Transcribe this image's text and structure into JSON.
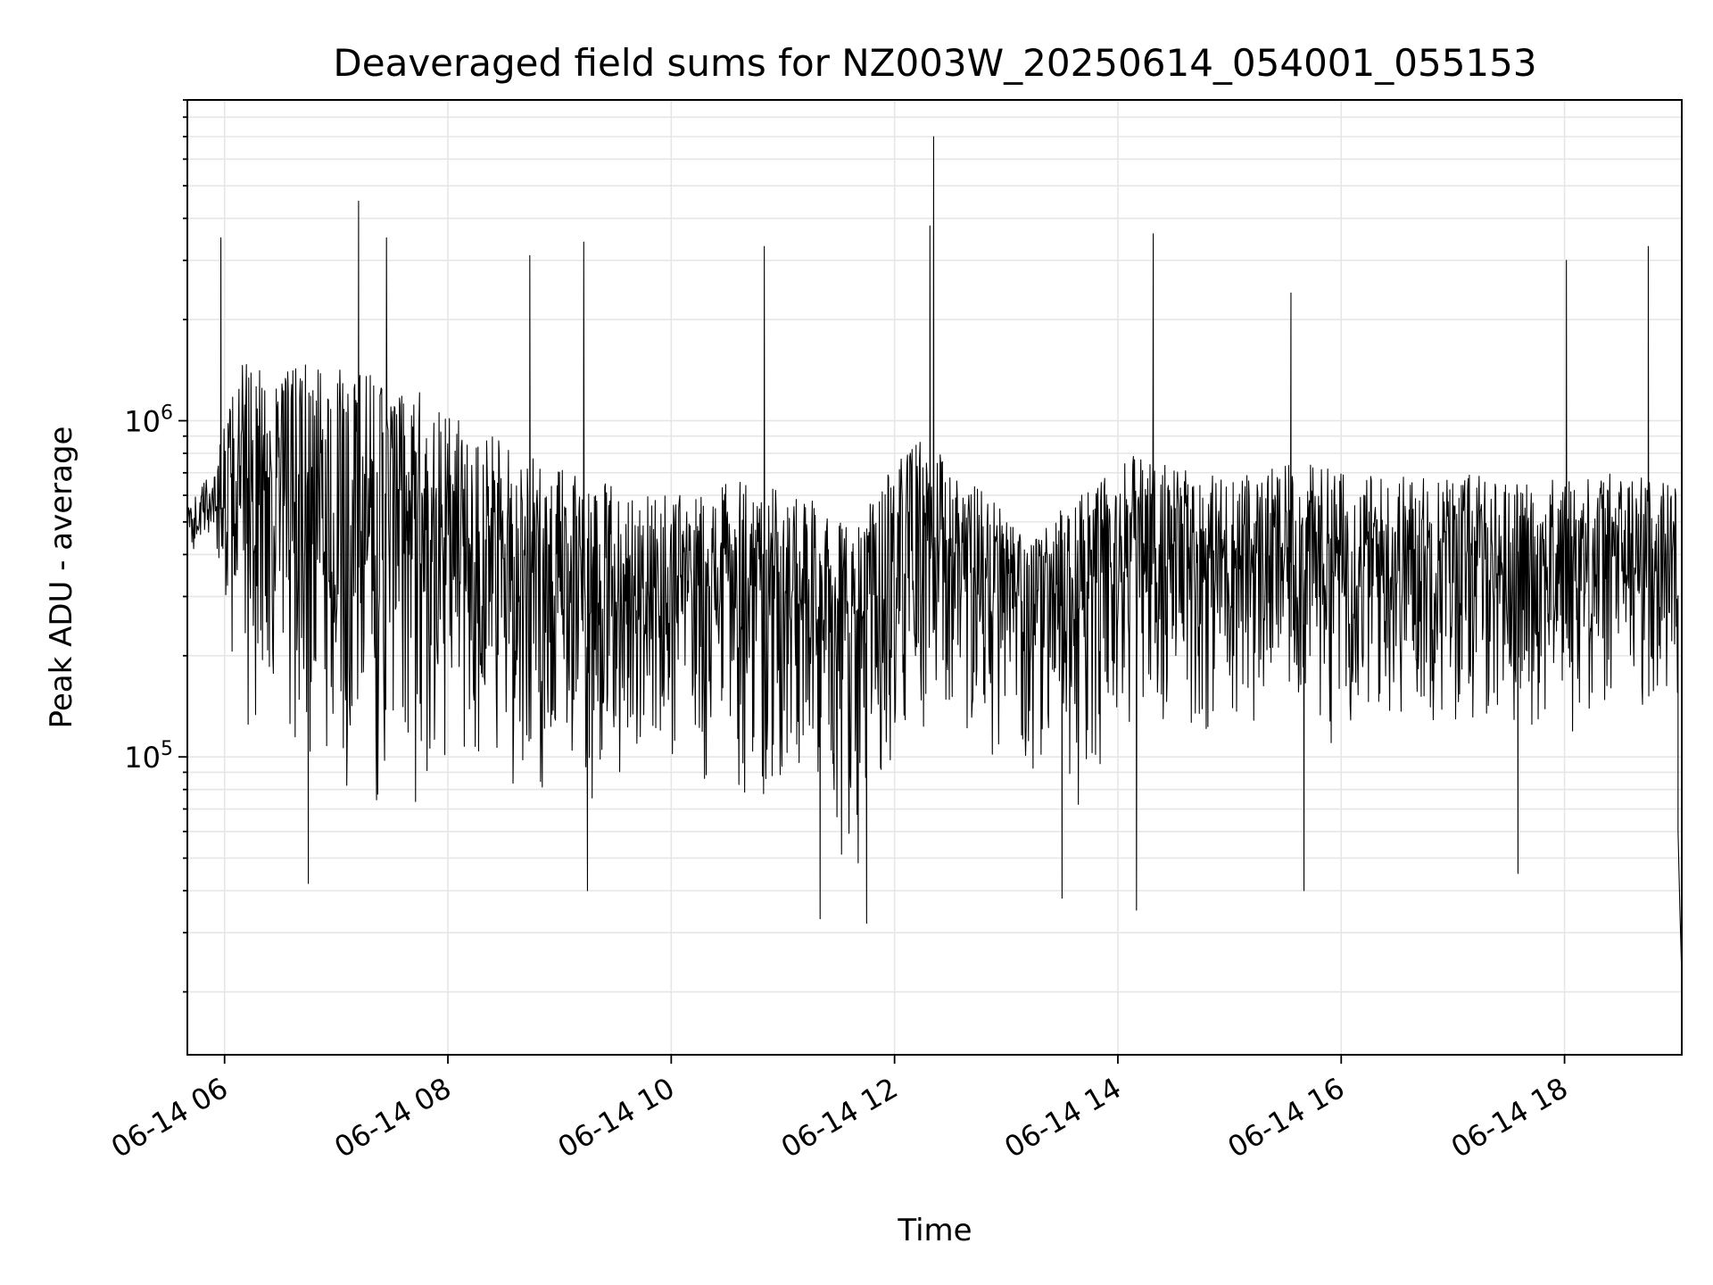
{
  "chart_data": {
    "type": "line",
    "title": "Deaveraged field sums for NZ003W_20250614_054001_055153",
    "xlabel": "Time",
    "ylabel": "Peak ADU - average",
    "yscale": "log",
    "grid": true,
    "grid_minor_y": true,
    "line_color": "#000000",
    "xlim": [
      "2025-06-14 05:40",
      "2025-06-14 19:03"
    ],
    "ylim": [
      13000,
      9000000
    ],
    "x_ticks": [
      {
        "value": "2025-06-14 06:00",
        "label": "06-14 06"
      },
      {
        "value": "2025-06-14 08:00",
        "label": "06-14 08"
      },
      {
        "value": "2025-06-14 10:00",
        "label": "06-14 10"
      },
      {
        "value": "2025-06-14 12:00",
        "label": "06-14 12"
      },
      {
        "value": "2025-06-14 14:00",
        "label": "06-14 14"
      },
      {
        "value": "2025-06-14 16:00",
        "label": "06-14 16"
      },
      {
        "value": "2025-06-14 18:00",
        "label": "06-14 18"
      }
    ],
    "y_ticks": [
      {
        "value": 100000,
        "base": "10",
        "exp": "5"
      },
      {
        "value": 1000000,
        "base": "10",
        "exp": "6"
      }
    ],
    "envelope": {
      "x": [
        "2025-06-14 05:40",
        "2025-06-14 05:52",
        "2025-06-14 06:10",
        "2025-06-14 06:40",
        "2025-06-14 07:10",
        "2025-06-14 07:40",
        "2025-06-14 08:10",
        "2025-06-14 08:40",
        "2025-06-14 09:10",
        "2025-06-14 09:40",
        "2025-06-14 10:10",
        "2025-06-14 10:40",
        "2025-06-14 11:10",
        "2025-06-14 11:40",
        "2025-06-14 12:10",
        "2025-06-14 12:40",
        "2025-06-14 13:10",
        "2025-06-14 13:40",
        "2025-06-14 14:10",
        "2025-06-14 14:40",
        "2025-06-14 15:10",
        "2025-06-14 15:40",
        "2025-06-14 16:10",
        "2025-06-14 16:40",
        "2025-06-14 17:10",
        "2025-06-14 17:40",
        "2025-06-14 18:10",
        "2025-06-14 18:40",
        "2025-06-14 19:00"
      ],
      "upper": [
        550000,
        700000,
        1500000,
        1500000,
        1400000,
        1300000,
        1000000,
        800000,
        700000,
        600000,
        600000,
        700000,
        600000,
        500000,
        900000,
        700000,
        450000,
        600000,
        800000,
        700000,
        700000,
        750000,
        700000,
        700000,
        700000,
        650000,
        700000,
        700000,
        650000
      ],
      "lower": [
        380000,
        400000,
        120000,
        60000,
        60000,
        60000,
        70000,
        65000,
        70000,
        85000,
        85000,
        65000,
        55000,
        45000,
        90000,
        100000,
        75000,
        70000,
        100000,
        110000,
        110000,
        110000,
        105000,
        110000,
        110000,
        110000,
        110000,
        120000,
        150000
      ]
    },
    "spikes": [
      {
        "x": "2025-06-14 05:58",
        "y": 3500000
      },
      {
        "x": "2025-06-14 07:12",
        "y": 4500000
      },
      {
        "x": "2025-06-14 07:27",
        "y": 3500000
      },
      {
        "x": "2025-06-14 08:44",
        "y": 3100000
      },
      {
        "x": "2025-06-14 09:13",
        "y": 3400000
      },
      {
        "x": "2025-06-14 10:50",
        "y": 3300000
      },
      {
        "x": "2025-06-14 12:19",
        "y": 3800000
      },
      {
        "x": "2025-06-14 12:21",
        "y": 7000000
      },
      {
        "x": "2025-06-14 14:19",
        "y": 3600000
      },
      {
        "x": "2025-06-14 15:33",
        "y": 2400000
      },
      {
        "x": "2025-06-14 18:01",
        "y": 3000000
      },
      {
        "x": "2025-06-14 18:45",
        "y": 3300000
      },
      {
        "x": "2025-06-14 06:45",
        "y": 42000
      },
      {
        "x": "2025-06-14 09:15",
        "y": 40000
      },
      {
        "x": "2025-06-14 11:20",
        "y": 33000
      },
      {
        "x": "2025-06-14 11:45",
        "y": 32000
      },
      {
        "x": "2025-06-14 13:30",
        "y": 38000
      },
      {
        "x": "2025-06-14 14:10",
        "y": 35000
      },
      {
        "x": "2025-06-14 15:40",
        "y": 40000
      },
      {
        "x": "2025-06-14 17:35",
        "y": 45000
      }
    ],
    "tail": [
      {
        "x": "2025-06-14 19:01",
        "y": 60000
      },
      {
        "x": "2025-06-14 19:02",
        "y": 35000
      },
      {
        "x": "2025-06-14 19:03",
        "y": 22000
      },
      {
        "x": "2025-06-14 19:03",
        "y": 15000
      }
    ]
  }
}
